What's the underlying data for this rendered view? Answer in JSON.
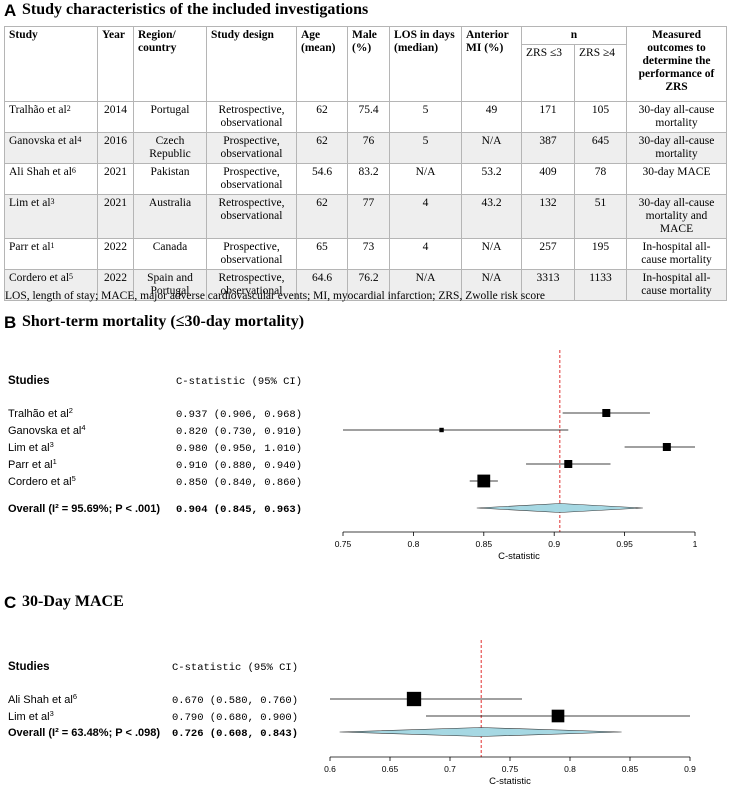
{
  "panel_a": {
    "letter": "A",
    "title": "Study characteristics of the included investigations",
    "headers": {
      "study": "Study",
      "year": "Year",
      "region": "Region/ country",
      "design": "Study design",
      "age": "Age (mean)",
      "male": "Male (%)",
      "los": "LOS in days (median)",
      "anterior": "Anterior MI (%)",
      "n": "n",
      "zrs_low": "ZRS ≤3",
      "zrs_high": "ZRS ≥4",
      "outcome": "Measured outcomes to determine the performance of ZRS"
    },
    "rows": [
      {
        "study": "Tralhão et al",
        "ref": "2",
        "year": "2014",
        "region": "Portugal",
        "design": "Retrospective, observational",
        "age": "62",
        "male": "75.4",
        "los": "5",
        "anterior": "49",
        "zrs_low": "171",
        "zrs_high": "105",
        "outcome": "30-day all-cause mortality"
      },
      {
        "study": "Ganovska et al",
        "ref": "4",
        "year": "2016",
        "region": "Czech Republic",
        "design": "Prospective, observational",
        "age": "62",
        "male": "76",
        "los": "5",
        "anterior": "N/A",
        "zrs_low": "387",
        "zrs_high": "645",
        "outcome": "30-day all-cause mortality"
      },
      {
        "study": "Ali Shah et al",
        "ref": "6",
        "year": "2021",
        "region": "Pakistan",
        "design": "Prospective, observational",
        "age": "54.6",
        "male": "83.2",
        "los": "N/A",
        "anterior": "53.2",
        "zrs_low": "409",
        "zrs_high": "78",
        "outcome": "30-day MACE"
      },
      {
        "study": "Lim et al",
        "ref": "3",
        "year": "2021",
        "region": "Australia",
        "design": "Retrospective, observational",
        "age": "62",
        "male": "77",
        "los": "4",
        "anterior": "43.2",
        "zrs_low": "132",
        "zrs_high": "51",
        "outcome": "30-day all-cause mortality and MACE"
      },
      {
        "study": "Parr et al",
        "ref": "1",
        "year": "2022",
        "region": "Canada",
        "design": "Prospective, observational",
        "age": "65",
        "male": "73",
        "los": "4",
        "anterior": "N/A",
        "zrs_low": "257",
        "zrs_high": "195",
        "outcome": "In-hospital all-cause mortality"
      },
      {
        "study": "Cordero et al",
        "ref": "5",
        "year": "2022",
        "region": "Spain and Portugal",
        "design": "Retrospective, observational",
        "age": "64.6",
        "male": "76.2",
        "los": "N/A",
        "anterior": "N/A",
        "zrs_low": "3313",
        "zrs_high": "1133",
        "outcome": "In-hospital all-cause mortality"
      }
    ],
    "abbreviations": "LOS, length of stay; MACE, major adverse cardiovascular events; MI, myocardial infarction; ZRS, Zwolle risk score"
  },
  "panel_b": {
    "letter": "B",
    "title": "Short-term mortality (≤30-day mortality)",
    "studies_header": "Studies",
    "ci_header": "C-statistic (95% CI)"
  },
  "panel_c": {
    "letter": "C",
    "title": "30-Day MACE",
    "studies_header": "Studies",
    "ci_header": "C-statistic (95% CI)"
  },
  "chart_data": [
    {
      "type": "forest",
      "title": "Short-term mortality (≤30-day mortality)",
      "xlabel": "C-statistic",
      "xlim": [
        0.75,
        1.0
      ],
      "ticks": [
        "0.75",
        "0.8",
        "0.85",
        "0.9",
        "0.95",
        "1"
      ],
      "reference_line": 0.904,
      "studies": [
        {
          "name": "Tralhão et al",
          "ref": "2",
          "est": 0.937,
          "lo": 0.906,
          "hi": 0.968,
          "ci_text": "0.937 (0.906, 0.968)",
          "weight": 1.0
        },
        {
          "name": "Ganovska et al",
          "ref": "4",
          "est": 0.82,
          "lo": 0.73,
          "hi": 0.91,
          "ci_text": "0.820 (0.730, 0.910)",
          "weight": 0.55
        },
        {
          "name": "Lim et al",
          "ref": "3",
          "est": 0.98,
          "lo": 0.95,
          "hi": 1.01,
          "ci_text": "0.980 (0.950, 1.010)",
          "weight": 1.0
        },
        {
          "name": "Parr et al",
          "ref": "1",
          "est": 0.91,
          "lo": 0.88,
          "hi": 0.94,
          "ci_text": "0.910 (0.880, 0.940)",
          "weight": 1.0
        },
        {
          "name": "Cordero et al",
          "ref": "5",
          "est": 0.85,
          "lo": 0.84,
          "hi": 0.86,
          "ci_text": "0.850 (0.840, 0.860)",
          "weight": 1.6
        }
      ],
      "overall": {
        "label": "Overall (I² = 95.69%; P < .001)",
        "est": 0.904,
        "lo": 0.845,
        "hi": 0.963,
        "ci_text": "0.904 (0.845, 0.963)"
      }
    },
    {
      "type": "forest",
      "title": "30-Day MACE",
      "xlabel": "C-statistic",
      "xlim": [
        0.6,
        0.9
      ],
      "ticks": [
        "0.6",
        "0.65",
        "0.7",
        "0.75",
        "0.8",
        "0.85",
        "0.9"
      ],
      "reference_line": 0.726,
      "studies": [
        {
          "name": "Ali Shah et al",
          "ref": "6",
          "est": 0.67,
          "lo": 0.58,
          "hi": 0.76,
          "ci_text": "0.670 (0.580, 0.760)",
          "weight": 1.3
        },
        {
          "name": "Lim et al",
          "ref": "3",
          "est": 0.79,
          "lo": 0.68,
          "hi": 0.9,
          "ci_text": "0.790 (0.680, 0.900)",
          "weight": 1.15
        }
      ],
      "overall": {
        "label": "Overall (I² = 63.48%; P < .098)",
        "est": 0.726,
        "lo": 0.608,
        "hi": 0.843,
        "ci_text": "0.726 (0.608, 0.843)"
      }
    }
  ],
  "colors": {
    "diamond_fill": "#a6d8e3",
    "ref_line": "#e03030",
    "axis": "#000000"
  }
}
